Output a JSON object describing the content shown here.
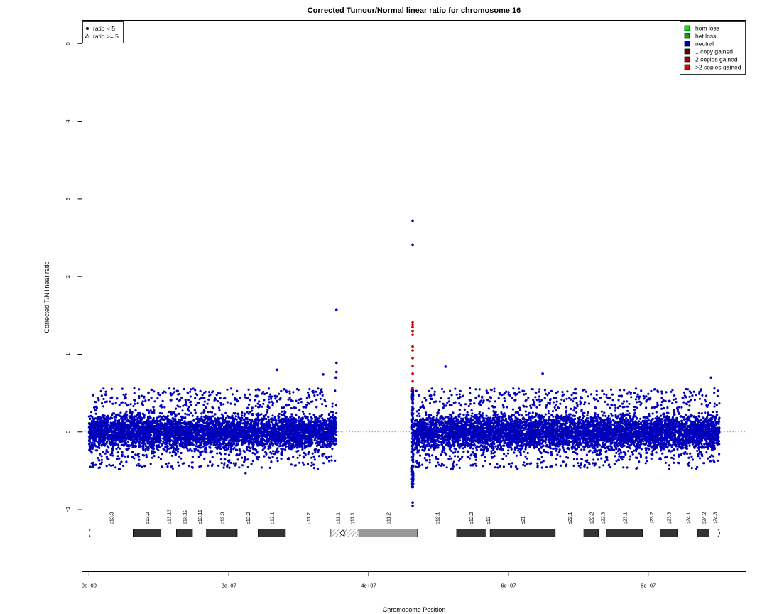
{
  "chart_data": {
    "type": "scatter",
    "title": "Corrected Tumour/Normal linear ratio for chromosome  16",
    "xlabel": "Chromosome Position",
    "ylabel": "Corrected T/N linear ratio",
    "xlim": [
      -1000000,
      94000000
    ],
    "ylim": [
      -1.8,
      5.3
    ],
    "x_ticks": [
      0,
      20000000,
      40000000,
      60000000,
      80000000
    ],
    "x_tick_labels": [
      "0e+00",
      "2e+07",
      "4e+07",
      "6e+07",
      "8e+07"
    ],
    "y_ticks": [
      -1,
      0,
      1,
      2,
      3,
      4,
      5
    ],
    "y_tick_labels": [
      "−1",
      "0",
      "1",
      "2",
      "3",
      "4",
      "5"
    ],
    "reference_line_y": 0,
    "shape_legend": {
      "position": "top-left",
      "entries": [
        {
          "symbol": "filled-circle",
          "label": "ratio < 5"
        },
        {
          "symbol": "open-triangle",
          "label": "ratio >= 5"
        }
      ]
    },
    "color_legend": {
      "position": "top-right",
      "entries": [
        {
          "label": "hom loss",
          "color": "#00ee00"
        },
        {
          "label": "het loss",
          "color": "#00aa00"
        },
        {
          "label": "neutral",
          "color": "#0000bb"
        },
        {
          "label": "1 copy gained",
          "color": "#660000"
        },
        {
          "label": "2 copies gained",
          "color": "#aa0000"
        },
        {
          "label": ">2 copies gained",
          "color": "#ee0000"
        }
      ]
    },
    "point_color": "#0000bb",
    "gain_color": "#cc0000",
    "series": [
      {
        "name": "neutral",
        "segments": [
          {
            "x_start": 0,
            "x_end": 35400000,
            "y_mean": 0.0,
            "y_spread": 0.34
          },
          {
            "x_start": 46500000,
            "x_end": 90200000,
            "y_mean": 0.0,
            "y_spread": 0.34
          }
        ],
        "outliers": [
          {
            "x": 35400000,
            "y": 1.57
          },
          {
            "x": 35400000,
            "y": 0.89
          },
          {
            "x": 35400000,
            "y": 0.77
          },
          {
            "x": 35300000,
            "y": 0.7
          },
          {
            "x": 33500000,
            "y": 0.74
          },
          {
            "x": 26900000,
            "y": 0.8
          },
          {
            "x": 46300000,
            "y": 2.72
          },
          {
            "x": 46300000,
            "y": 2.41
          },
          {
            "x": 46300000,
            "y": -0.91
          },
          {
            "x": 46300000,
            "y": -0.95
          },
          {
            "x": 51000000,
            "y": 0.84
          },
          {
            "x": 64900000,
            "y": 0.75
          },
          {
            "x": 89000000,
            "y": 0.7
          },
          {
            "x": 22400000,
            "y": -0.53
          }
        ]
      },
      {
        "name": "2 copies gained",
        "points": [
          {
            "x": 46300000,
            "y": 1.41
          },
          {
            "x": 46300000,
            "y": 1.38
          },
          {
            "x": 46300000,
            "y": 1.35
          },
          {
            "x": 46300000,
            "y": 1.3
          },
          {
            "x": 46300000,
            "y": 1.25
          },
          {
            "x": 46300000,
            "y": 1.1
          },
          {
            "x": 46300000,
            "y": 1.05
          },
          {
            "x": 46300000,
            "y": 0.95
          },
          {
            "x": 46300000,
            "y": 0.85
          },
          {
            "x": 46300000,
            "y": 0.75
          },
          {
            "x": 46300000,
            "y": 0.65
          },
          {
            "x": 46300000,
            "y": 0.55
          }
        ]
      }
    ],
    "ideogram": {
      "length": 90338345,
      "centromere": 36300000,
      "bands": [
        {
          "name": "p13.3",
          "start": 0,
          "end": 6300000,
          "stain": "gneg"
        },
        {
          "name": "p13.2",
          "start": 6300000,
          "end": 10300000,
          "stain": "gpos50"
        },
        {
          "name": "p13.13",
          "start": 10300000,
          "end": 12500000,
          "stain": "gneg"
        },
        {
          "name": "p13.12",
          "start": 12500000,
          "end": 14800000,
          "stain": "gpos50"
        },
        {
          "name": "p13.11",
          "start": 14800000,
          "end": 16800000,
          "stain": "gneg"
        },
        {
          "name": "p12.3",
          "start": 16800000,
          "end": 21200000,
          "stain": "gpos50"
        },
        {
          "name": "p12.2",
          "start": 21200000,
          "end": 24200000,
          "stain": "gneg"
        },
        {
          "name": "p12.1",
          "start": 24200000,
          "end": 28100000,
          "stain": "gpos50"
        },
        {
          "name": "p11.2",
          "start": 28100000,
          "end": 34600000,
          "stain": "gneg"
        },
        {
          "name": "p11.1",
          "start": 34600000,
          "end": 36600000,
          "stain": "acen"
        },
        {
          "name": "q11.1",
          "start": 36600000,
          "end": 38600000,
          "stain": "acen"
        },
        {
          "name": "q11.2",
          "start": 38600000,
          "end": 47000000,
          "stain": "gvar"
        },
        {
          "name": "q12.1",
          "start": 47000000,
          "end": 52600000,
          "stain": "gneg"
        },
        {
          "name": "q12.2",
          "start": 52600000,
          "end": 56700000,
          "stain": "gpos50"
        },
        {
          "name": "q13",
          "start": 56700000,
          "end": 57400000,
          "stain": "gneg"
        },
        {
          "name": "q21",
          "start": 57400000,
          "end": 66700000,
          "stain": "gpos50"
        },
        {
          "name": "q22.1",
          "start": 66700000,
          "end": 70800000,
          "stain": "gneg"
        },
        {
          "name": "q22.2",
          "start": 70800000,
          "end": 72900000,
          "stain": "gpos50"
        },
        {
          "name": "q22.3",
          "start": 72900000,
          "end": 74100000,
          "stain": "gneg"
        },
        {
          "name": "q23.1",
          "start": 74100000,
          "end": 79200000,
          "stain": "gpos50"
        },
        {
          "name": "q23.2",
          "start": 79200000,
          "end": 81700000,
          "stain": "gneg"
        },
        {
          "name": "q23.3",
          "start": 81700000,
          "end": 84200000,
          "stain": "gpos50"
        },
        {
          "name": "q24.1",
          "start": 84200000,
          "end": 87100000,
          "stain": "gneg"
        },
        {
          "name": "q24.2",
          "start": 87100000,
          "end": 88700000,
          "stain": "gpos50"
        },
        {
          "name": "q24.3",
          "start": 88700000,
          "end": 90338345,
          "stain": "gneg"
        }
      ]
    }
  }
}
